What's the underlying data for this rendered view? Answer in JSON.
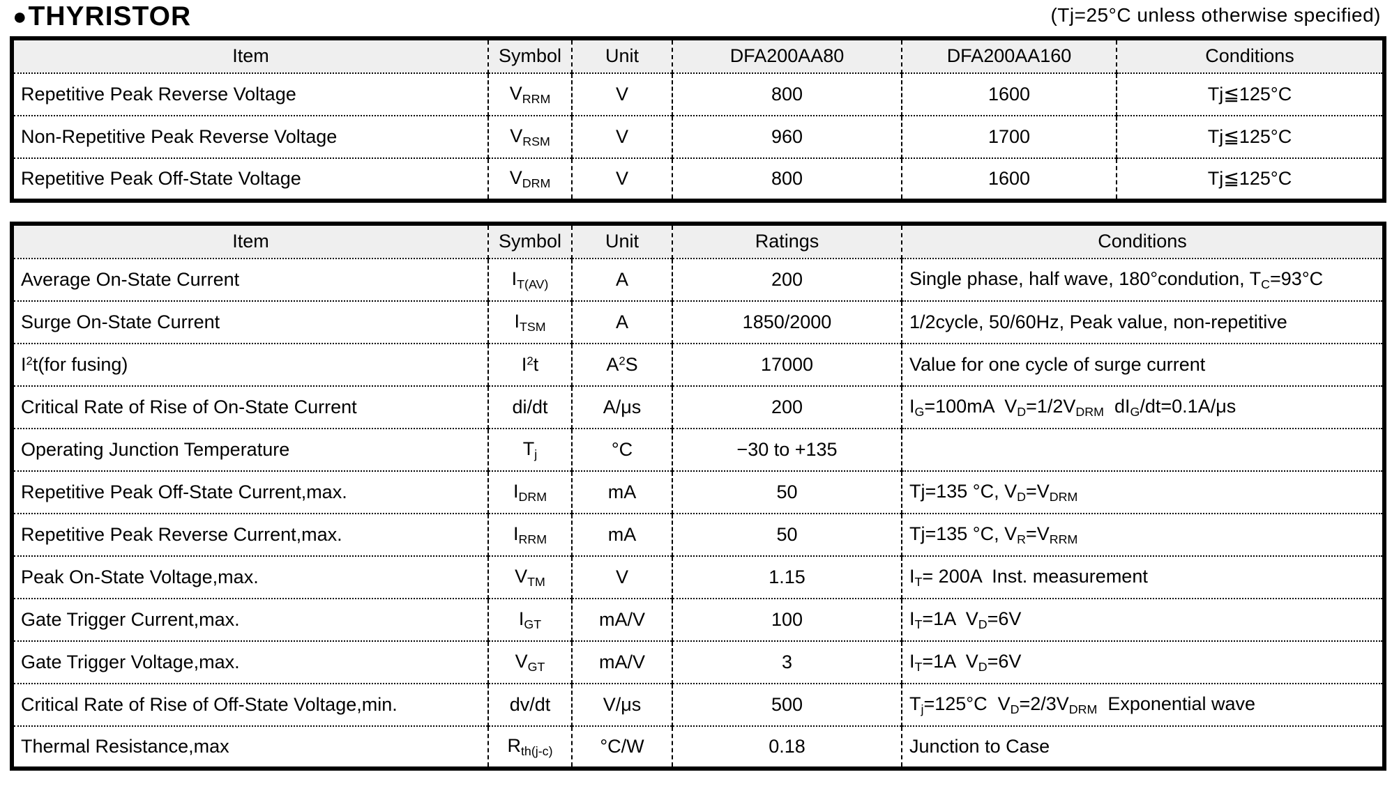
{
  "page": {
    "bullet": "●",
    "title": "THYRISTOR",
    "note": "(Tj=25°C unless otherwise specified)"
  },
  "table1": {
    "headers": [
      "Item",
      "Symbol",
      "Unit",
      "DFA200AA80",
      "DFA200AA160",
      "Conditions"
    ],
    "rows": [
      [
        "Repetitive Peak Reverse Voltage",
        "V~RRM~",
        "V",
        "800",
        "1600",
        "Tj≦125°C"
      ],
      [
        "Non-Repetitive Peak Reverse Voltage",
        "V~RSM~",
        "V",
        "960",
        "1700",
        "Tj≦125°C"
      ],
      [
        "Repetitive Peak Off-State Voltage",
        "V~DRM~",
        "V",
        "800",
        "1600",
        "Tj≦125°C"
      ]
    ]
  },
  "table2": {
    "headers": [
      "Item",
      "Symbol",
      "Unit",
      "Ratings",
      "Conditions"
    ],
    "rows": [
      [
        "Average On-State Current",
        "I~T(AV)~",
        "A",
        "200",
        "Single phase, half wave, 180°condution, T~C~=93°C"
      ],
      [
        "Surge On-State Current",
        "I~TSM~",
        "A",
        "1850/2000",
        "1/2cycle, 50/60Hz, Peak value, non-repetitive"
      ],
      [
        "I^2^t(for fusing)",
        "I^2^t",
        "A^2^S",
        "17000",
        "Value for one cycle of surge current"
      ],
      [
        "Critical Rate of Rise of On-State Current",
        "di/dt",
        "A/μs",
        "200",
        "I~G~=100mA  V~D~=1/2V~DRM~  dI~G~/dt=0.1A/μs"
      ],
      [
        "Operating Junction Temperature",
        "T~j~",
        "°C",
        "−30 to +135",
        ""
      ],
      [
        "Repetitive Peak Off-State Current,max.",
        "I~DRM~",
        "mA",
        "50",
        "Tj=135 °C, V~D~=V~DRM~"
      ],
      [
        "Repetitive Peak Reverse Current,max.",
        "I~RRM~",
        "mA",
        "50",
        "Tj=135 °C, V~R~=V~RRM~"
      ],
      [
        "Peak On-State Voltage,max.",
        "V~TM~",
        "V",
        "1.15",
        "I~T~= 200A  Inst. measurement"
      ],
      [
        "Gate Trigger Current,max.",
        "I~GT~",
        "mA/V",
        "100",
        "I~T~=1A  V~D~=6V"
      ],
      [
        "Gate Trigger Voltage,max.",
        "V~GT~",
        "mA/V",
        "3",
        "I~T~=1A  V~D~=6V"
      ],
      [
        "Critical Rate of Rise of Off-State Voltage,min.",
        "dv/dt",
        "V/μs",
        "500",
        "T~j~=125°C  V~D~=2/3V~DRM~  Exponential wave"
      ],
      [
        "Thermal Resistance,max",
        "R~th(j-c)~",
        "°C/W",
        "0.18",
        "Junction to Case"
      ]
    ]
  }
}
